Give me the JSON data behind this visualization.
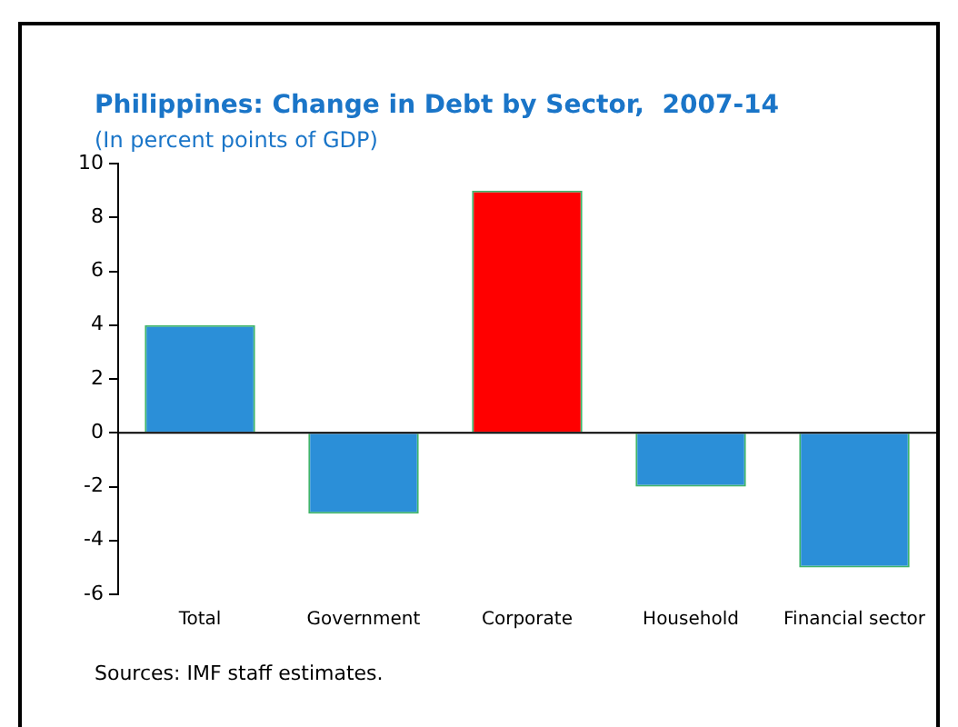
{
  "chart_data": {
    "type": "bar",
    "title": "Philippines: Change in Debt by Sector,  2007-14",
    "subtitle": "(In percent points of GDP)",
    "categories": [
      "Total",
      "Government",
      "Corporate",
      "Household",
      "Financial sector"
    ],
    "values": [
      4,
      -3,
      9,
      -2,
      -5
    ],
    "colors": [
      "#2b8fd8",
      "#2b8fd8",
      "#ff0000",
      "#2b8fd8",
      "#2b8fd8"
    ],
    "ylim": [
      -6,
      10
    ],
    "yticks": [
      -6,
      -4,
      -2,
      0,
      2,
      4,
      6,
      8,
      10
    ],
    "grid": false,
    "ref_lines": [
      {
        "axis": "y",
        "value": 0,
        "color": "#000000"
      }
    ],
    "legend": false,
    "annotations": [
      "Sources: IMF staff estimates."
    ]
  }
}
